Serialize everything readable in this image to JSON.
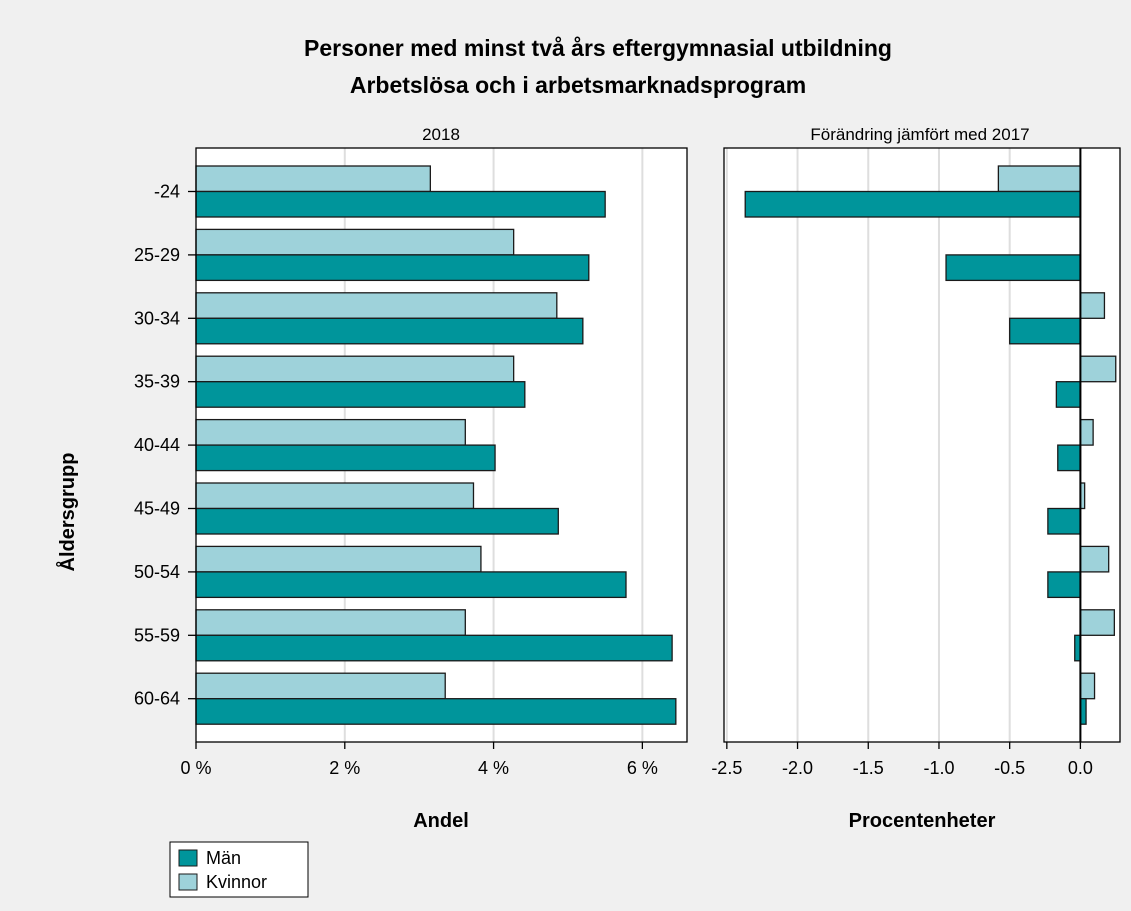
{
  "chart_data": {
    "title_lines": [
      "Personer med minst två års eftergymnasial utbildning",
      "Arbetslösa och i arbetsmarknadsprogram"
    ],
    "ylabel": "Åldersgrupp",
    "categories": [
      "-24",
      "25-29",
      "30-34",
      "35-39",
      "40-44",
      "45-49",
      "50-54",
      "55-59",
      "60-64"
    ],
    "legend": [
      {
        "name": "Män",
        "color": "#00959b"
      },
      {
        "name": "Kvinnor",
        "color": "#9ed2da"
      }
    ],
    "panels": [
      {
        "type": "bar",
        "orientation": "horizontal",
        "title": "2018",
        "xlabel": "Andel",
        "xlim": [
          0,
          6.6
        ],
        "xticks": [
          0,
          2,
          4,
          6
        ],
        "xtick_labels": [
          "0 %",
          "2 %",
          "4 %",
          "6 %"
        ],
        "grid": true,
        "series": [
          {
            "name": "Kvinnor",
            "values": [
              3.15,
              4.27,
              4.85,
              4.27,
              3.62,
              3.73,
              3.83,
              3.62,
              3.35
            ]
          },
          {
            "name": "Män",
            "values": [
              5.5,
              5.28,
              5.2,
              4.42,
              4.02,
              4.87,
              5.78,
              6.4,
              6.45
            ]
          }
        ]
      },
      {
        "type": "bar",
        "orientation": "horizontal",
        "title": "Förändring jämfört med 2017",
        "xlabel": "Procentenheter",
        "xlim": [
          -2.52,
          0.28
        ],
        "xticks": [
          -2.5,
          -2.0,
          -1.5,
          -1.0,
          -0.5,
          0.0
        ],
        "xtick_labels": [
          "-2.5",
          "-2.0",
          "-1.5",
          "-1.0",
          "-0.5",
          "0.0"
        ],
        "grid": true,
        "series": [
          {
            "name": "Kvinnor",
            "values": [
              -0.58,
              0.0,
              0.17,
              0.25,
              0.09,
              0.03,
              0.2,
              0.24,
              0.1
            ]
          },
          {
            "name": "Män",
            "values": [
              -2.37,
              -0.95,
              -0.5,
              -0.17,
              -0.16,
              -0.23,
              -0.23,
              -0.04,
              0.04
            ]
          }
        ]
      }
    ]
  }
}
